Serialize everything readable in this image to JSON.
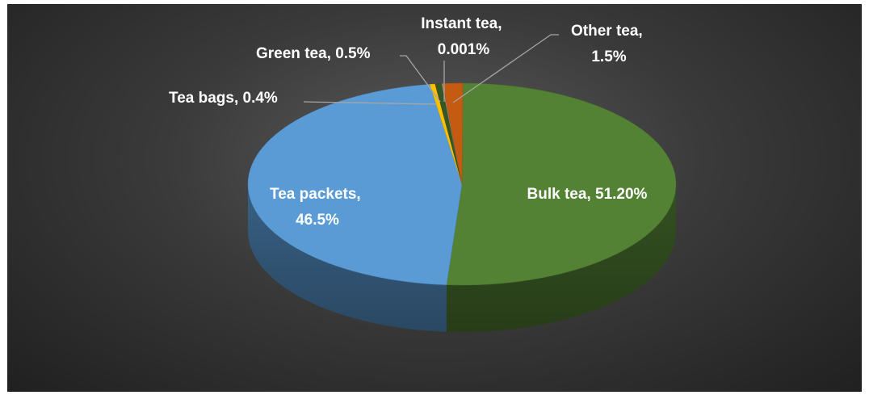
{
  "chart_data": {
    "type": "pie",
    "style": "3d-pie",
    "background": "#3a3a3a",
    "label_color": "#ffffff",
    "slices": [
      {
        "name": "Bulk tea",
        "value": 51.2,
        "label_line1": "Bulk tea, 51.20%",
        "label_line2": "",
        "color": "#548235"
      },
      {
        "name": "Tea packets",
        "value": 46.5,
        "label_line1": "Tea packets,",
        "label_line2": "46.5%",
        "color": "#5b9bd5"
      },
      {
        "name": "Tea bags",
        "value": 0.4,
        "label_line1": "Tea bags, 0.4%",
        "label_line2": "",
        "color": "#ffc000"
      },
      {
        "name": "Green tea",
        "value": 0.5,
        "label_line1": "Green tea, 0.5%",
        "label_line2": "",
        "color": "#375623"
      },
      {
        "name": "Instant tea",
        "value": 0.001,
        "label_line1": "Instant tea,",
        "label_line2": "0.001%",
        "color": "#a5a5a5"
      },
      {
        "name": "Other tea",
        "value": 1.5,
        "label_line1": "Other  tea,",
        "label_line2": "1.5%",
        "color": "#c55a11"
      }
    ]
  }
}
